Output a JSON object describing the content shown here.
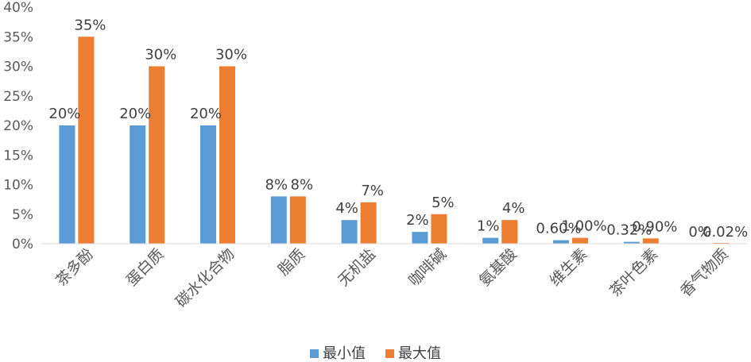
{
  "colors": {
    "min": "#5B9BD5",
    "max": "#ED7D31",
    "axis": "#D9D9D9",
    "text": "#595959"
  },
  "chart_data": {
    "type": "bar",
    "title": "",
    "xlabel": "",
    "ylabel": "",
    "ylim": [
      0,
      40
    ],
    "y_ticks": [
      "0%",
      "5%",
      "10%",
      "15%",
      "20%",
      "25%",
      "30%",
      "35%",
      "40%"
    ],
    "categories": [
      "茶多酚",
      "蛋白质",
      "碳水化合物",
      "脂质",
      "无机盐",
      "咖啡碱",
      "氨基酸",
      "维生素",
      "茶叶色素",
      "香气物质"
    ],
    "series": [
      {
        "name": "最小值",
        "values": [
          20,
          20,
          20,
          8,
          4,
          2,
          1,
          0.6,
          0.32,
          0
        ],
        "labels": [
          "20%",
          "20%",
          "20%",
          "8%",
          "4%",
          "2%",
          "1%",
          "0.60%",
          "0.32%",
          "0%"
        ]
      },
      {
        "name": "最大值",
        "values": [
          35,
          30,
          30,
          8,
          7,
          5,
          4,
          1,
          0.9,
          0.02
        ],
        "labels": [
          "35%",
          "30%",
          "30%",
          "8%",
          "7%",
          "5%",
          "4%",
          "1.00%",
          "0.90%",
          "0.02%"
        ]
      }
    ],
    "legend_position": "bottom",
    "grid": false
  }
}
